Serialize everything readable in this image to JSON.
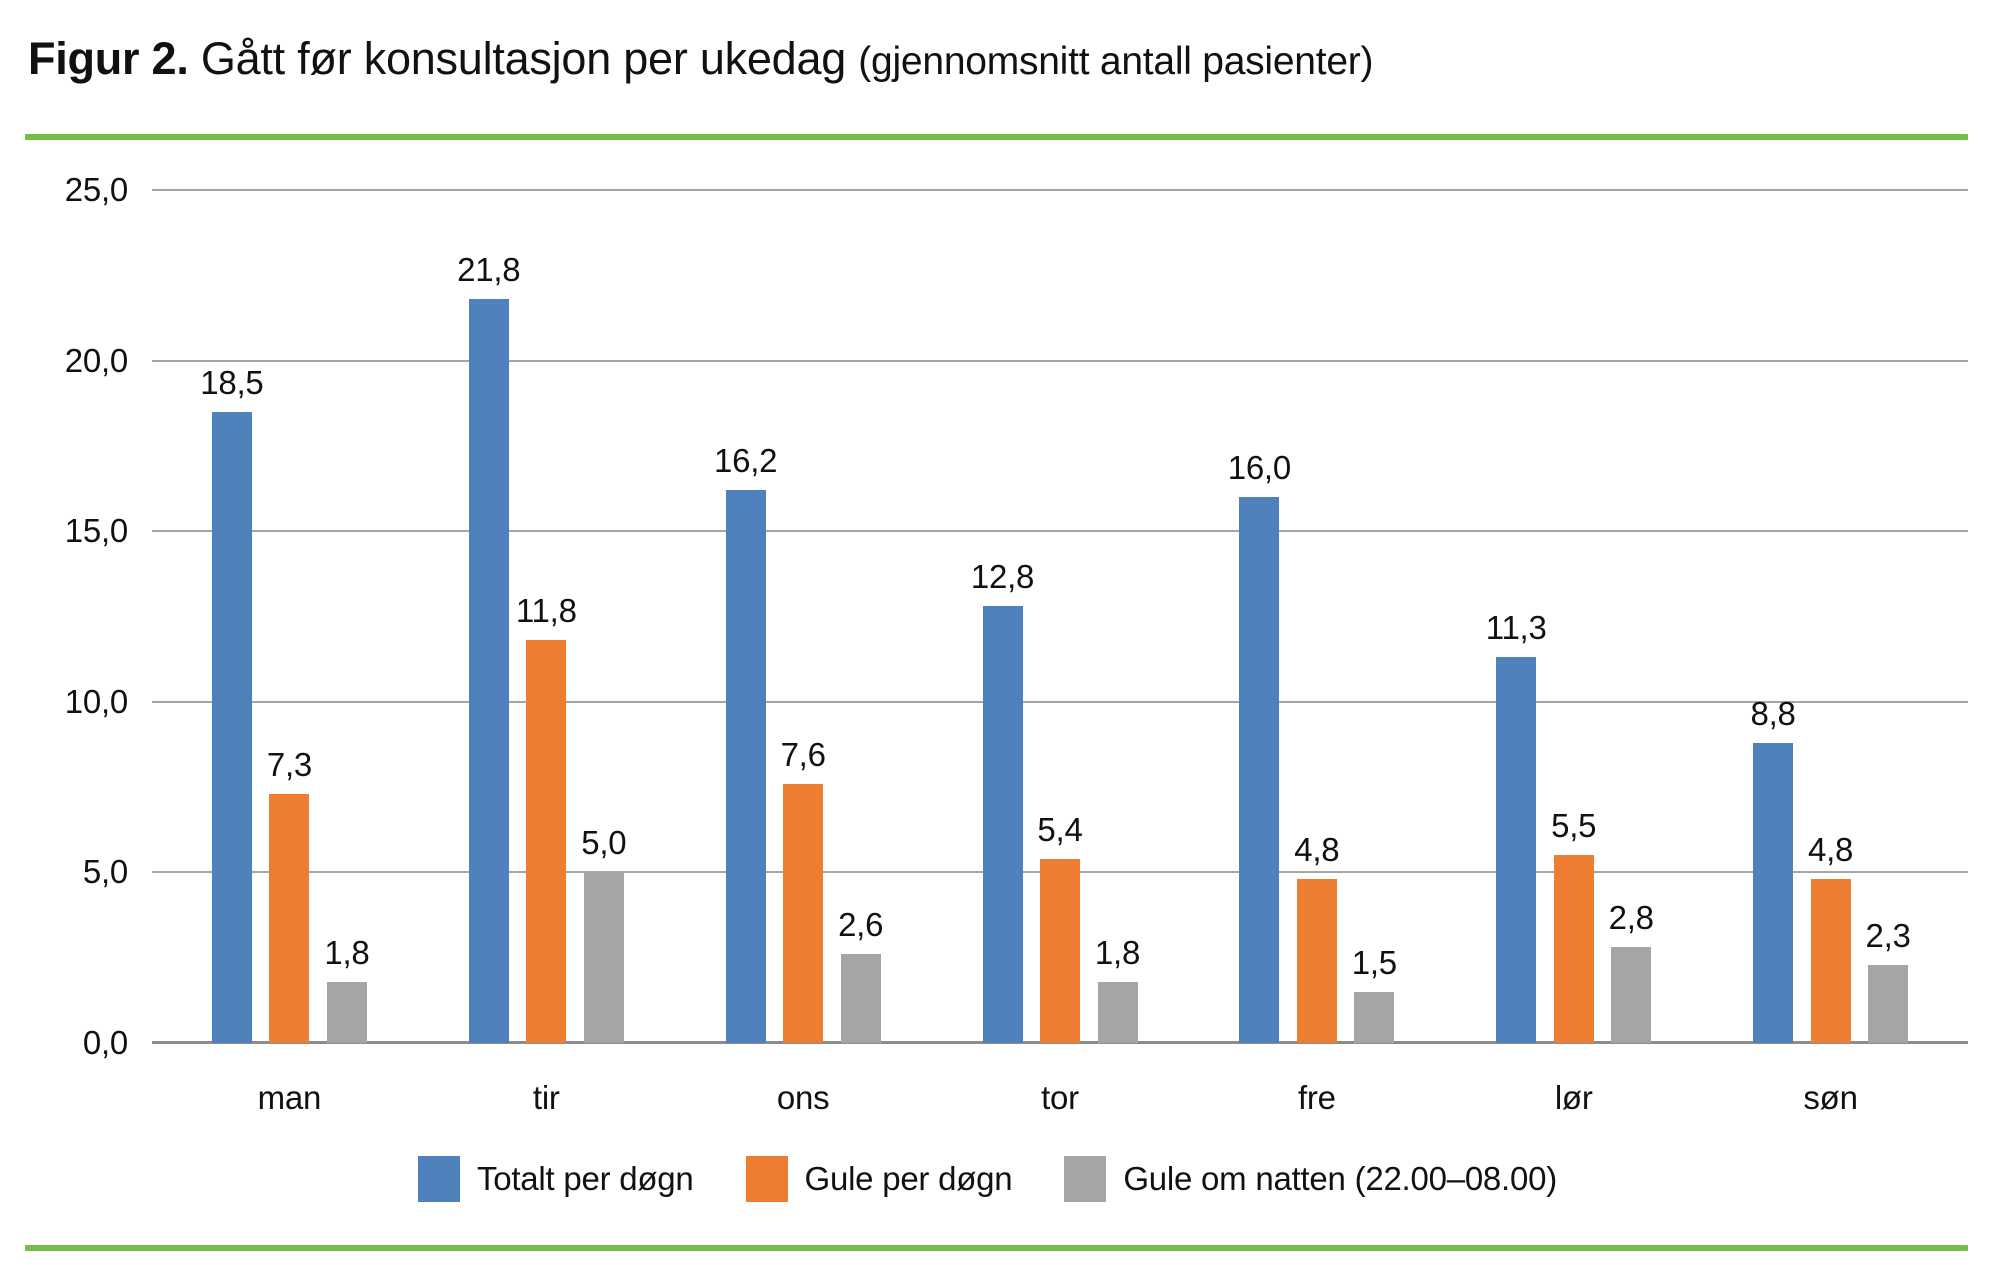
{
  "title": {
    "prefix": "Figur 2.",
    "main": " Gått før konsultasjon per ukedag ",
    "paren": "(gjennomsnitt antall pasienter)"
  },
  "colors": {
    "accent_green": "#72BF44",
    "gridline": "#A6A6A6",
    "axis_line": "#8C8C8C",
    "text": "#111111",
    "series_blue": "#4F81BD",
    "series_orange": "#ED7D31",
    "series_gray": "#A5A5A5"
  },
  "chart_data": {
    "type": "bar",
    "title": "Figur 2. Gått før konsultasjon per ukedag (gjennomsnitt antall pasienter)",
    "categories": [
      "man",
      "tir",
      "ons",
      "tor",
      "fre",
      "lør",
      "søn"
    ],
    "series": [
      {
        "name": "Totalt per døgn",
        "color": "#4F81BD",
        "values": [
          18.5,
          21.8,
          16.2,
          12.8,
          16.0,
          11.3,
          8.8
        ],
        "labels": [
          "18,5",
          "21,8",
          "16,2",
          "12,8",
          "16,0",
          "11,3",
          "8,8"
        ]
      },
      {
        "name": "Gule per døgn",
        "color": "#ED7D31",
        "values": [
          7.3,
          11.8,
          7.6,
          5.4,
          4.8,
          5.5,
          4.8
        ],
        "labels": [
          "7,3",
          "11,8",
          "7,6",
          "5,4",
          "4,8",
          "5,5",
          "4,8"
        ]
      },
      {
        "name": "Gule om natten (22.00–08.00)",
        "color": "#A5A5A5",
        "values": [
          1.8,
          5.0,
          2.6,
          1.8,
          1.5,
          2.8,
          2.3
        ],
        "labels": [
          "1,8",
          "5,0",
          "2,6",
          "1,8",
          "1,5",
          "2,8",
          "2,3"
        ]
      }
    ],
    "ylim": [
      0,
      25
    ],
    "ytick_step": 5,
    "ytick_labels": [
      "0,0",
      "5,0",
      "10,0",
      "15,0",
      "20,0",
      "25,0"
    ],
    "decimal_separator": ",",
    "grid": "horizontal-only",
    "legend_position": "bottom",
    "data_labels_shown": true
  }
}
